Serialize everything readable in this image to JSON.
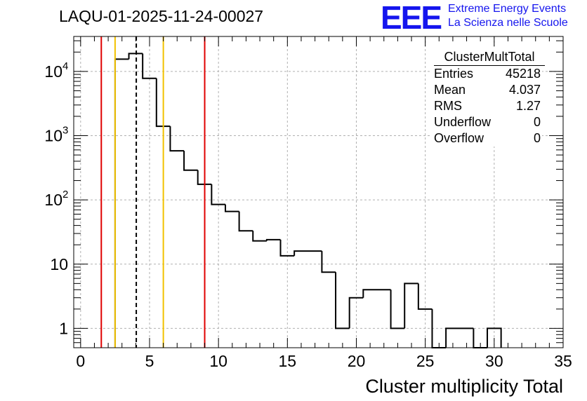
{
  "header": {
    "run_title": "LAQU-01-2025-11-24-00027",
    "logo_text": "EEE",
    "logo_line1": "Extreme Energy Events",
    "logo_line2": "La Scienza nelle Scuole"
  },
  "stats_box": {
    "title": "ClusterMultTotal",
    "rows": [
      {
        "label": "Entries",
        "value": "45218"
      },
      {
        "label": "Mean",
        "value": "4.037"
      },
      {
        "label": "RMS",
        "value": "1.27"
      },
      {
        "label": "Underflow",
        "value": "0"
      },
      {
        "label": "Overflow",
        "value": "0"
      }
    ]
  },
  "colors": {
    "red_line": "#e00000",
    "yellow_line": "#f2c200",
    "histogram": "#000000",
    "grid": "#b0b0b0",
    "logo": "#1515ee"
  },
  "chart_data": {
    "type": "histogram",
    "title": "LAQU-01-2025-11-24-00027",
    "xlabel": "Cluster multiplicity Total",
    "ylabel": "",
    "xlim": [
      -0.5,
      35
    ],
    "ylim": [
      0.5,
      35000
    ],
    "yscale": "log",
    "grid": true,
    "x_ticks": [
      0,
      5,
      10,
      15,
      20,
      25,
      30,
      35
    ],
    "x_tick_labels": [
      "0",
      "5",
      "10",
      "15",
      "20",
      "25",
      "30",
      "35"
    ],
    "y_ticks": [
      1,
      10,
      100,
      1000,
      10000
    ],
    "y_tick_labels": [
      {
        "base": "1",
        "exp": ""
      },
      {
        "base": "10",
        "exp": ""
      },
      {
        "base": "10",
        "exp": "2"
      },
      {
        "base": "10",
        "exp": "3"
      },
      {
        "base": "10",
        "exp": "4"
      }
    ],
    "bins": [
      {
        "lo": 2.5,
        "hi": 3.5,
        "count": 15500
      },
      {
        "lo": 3.5,
        "hi": 4.5,
        "count": 19000
      },
      {
        "lo": 4.5,
        "hi": 5.5,
        "count": 7800
      },
      {
        "lo": 5.5,
        "hi": 6.5,
        "count": 1400
      },
      {
        "lo": 6.5,
        "hi": 7.5,
        "count": 580
      },
      {
        "lo": 7.5,
        "hi": 8.5,
        "count": 290
      },
      {
        "lo": 8.5,
        "hi": 9.5,
        "count": 175
      },
      {
        "lo": 9.5,
        "hi": 10.5,
        "count": 85
      },
      {
        "lo": 10.5,
        "hi": 11.5,
        "count": 66
      },
      {
        "lo": 11.5,
        "hi": 12.5,
        "count": 33
      },
      {
        "lo": 12.5,
        "hi": 13.5,
        "count": 23
      },
      {
        "lo": 13.5,
        "hi": 14.5,
        "count": 24
      },
      {
        "lo": 14.5,
        "hi": 15.5,
        "count": 13.5
      },
      {
        "lo": 15.5,
        "hi": 17.5,
        "count": 16
      },
      {
        "lo": 17.5,
        "hi": 18.5,
        "count": 7.5
      },
      {
        "lo": 18.5,
        "hi": 19.5,
        "count": 1
      },
      {
        "lo": 19.5,
        "hi": 20.5,
        "count": 3
      },
      {
        "lo": 20.5,
        "hi": 22.5,
        "count": 4
      },
      {
        "lo": 22.5,
        "hi": 23.5,
        "count": 1
      },
      {
        "lo": 23.5,
        "hi": 24.5,
        "count": 5
      },
      {
        "lo": 24.5,
        "hi": 25.5,
        "count": 2
      },
      {
        "lo": 25.5,
        "hi": 26.5,
        "count": 0
      },
      {
        "lo": 26.5,
        "hi": 28.5,
        "count": 1
      },
      {
        "lo": 28.5,
        "hi": 29.5,
        "count": 0
      },
      {
        "lo": 29.5,
        "hi": 30.5,
        "count": 1
      }
    ],
    "markers": [
      {
        "name": "red-left",
        "x": 1.5,
        "color": "red",
        "style": "solid"
      },
      {
        "name": "yellow-left",
        "x": 2.5,
        "color": "yellow",
        "style": "solid"
      },
      {
        "name": "mean",
        "x": 4.037,
        "color": "black",
        "style": "dashed"
      },
      {
        "name": "yellow-right",
        "x": 6,
        "color": "yellow",
        "style": "solid"
      },
      {
        "name": "red-right",
        "x": 9,
        "color": "red",
        "style": "solid"
      }
    ]
  }
}
